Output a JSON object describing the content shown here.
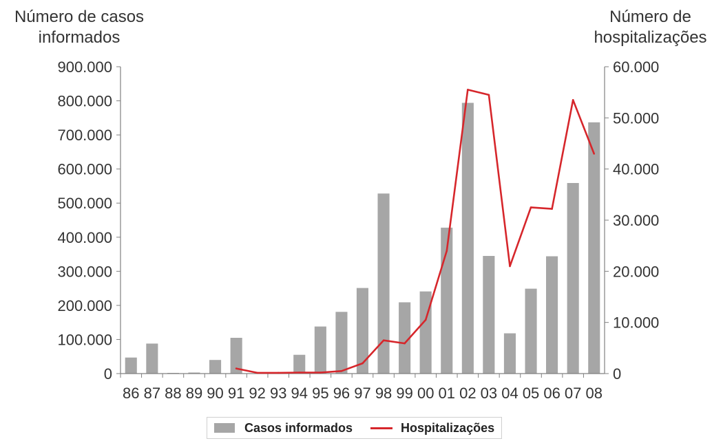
{
  "chart_data": {
    "type": "bar",
    "categories": [
      "86",
      "87",
      "88",
      "89",
      "90",
      "91",
      "92",
      "93",
      "94",
      "95",
      "96",
      "97",
      "98",
      "99",
      "00",
      "01",
      "02",
      "03",
      "04",
      "05",
      "06",
      "07",
      "08"
    ],
    "ylabel_left": "Número de casos informados",
    "ylabel_right": "Número de hospitalizações",
    "yticks_left": [
      "0",
      "100.000",
      "200.000",
      "300.000",
      "400.000",
      "500.000",
      "600.000",
      "700.000",
      "800.000",
      "900.000"
    ],
    "yticks_right": [
      "0",
      "10.000",
      "20.000",
      "30.000",
      "40.000",
      "50.000",
      "60.000"
    ],
    "ylim_left": [
      0,
      900000
    ],
    "ylim_right": [
      0,
      60000
    ],
    "series": [
      {
        "name": "Casos informados",
        "kind": "bar",
        "axis": "left",
        "color": "#a6a6a6",
        "values": [
          47000,
          88000,
          2000,
          3000,
          40000,
          105000,
          null,
          null,
          55000,
          138000,
          181000,
          251000,
          528000,
          209000,
          241000,
          428000,
          794000,
          345000,
          118000,
          249000,
          344000,
          559000,
          737000
        ]
      },
      {
        "name": "Hospitalizações",
        "kind": "line",
        "axis": "right",
        "color": "#d6262b",
        "values": [
          null,
          null,
          null,
          null,
          null,
          1000,
          150,
          150,
          200,
          200,
          500,
          2000,
          6500,
          5900,
          10500,
          24000,
          55500,
          54500,
          21000,
          32500,
          32200,
          53500,
          43000
        ]
      }
    ],
    "legend": [
      "Casos informados",
      "Hospitalizações"
    ],
    "legend_position": "bottom",
    "grid": false
  }
}
